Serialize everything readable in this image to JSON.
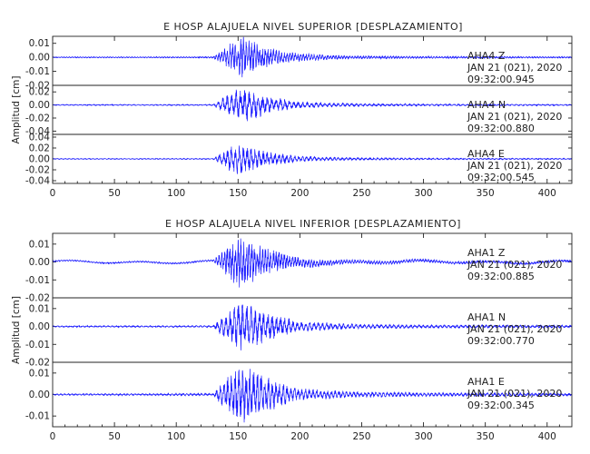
{
  "figure_title_top": "E HOSP ALAJUELA NIVEL SUPERIOR [DESPLAZAMIENTO]",
  "figure_title_bottom": "E HOSP ALAJUELA NIVEL INFERIOR [DESPLAZAMIENTO]",
  "trace_color": "#1a1aff",
  "chart_data": [
    {
      "type": "line",
      "title": "E HOSP ALAJUELA NIVEL SUPERIOR [DESPLAZAMIENTO]",
      "ylabel": "Amplitud [cm]",
      "xlim": [
        0,
        420
      ],
      "x_ticks": [
        "0",
        "50",
        "100",
        "150",
        "200",
        "250",
        "300",
        "350",
        "400"
      ],
      "panels": [
        {
          "station": "AHA4",
          "component": "Z",
          "date": "JAN 21 (021), 2020",
          "time": "09:32:00.945",
          "ylim": [
            -0.02,
            0.015
          ],
          "y_ticks": [
            "0.01",
            "0.00",
            "-0.01",
            "-0.02"
          ],
          "envelope": [
            [
              0,
              0.0004
            ],
            [
              130,
              0.0005
            ],
            [
              135,
              0.004
            ],
            [
              145,
              0.011
            ],
            [
              152,
              0.016
            ],
            [
              160,
              0.012
            ],
            [
              175,
              0.007
            ],
            [
              200,
              0.003
            ],
            [
              240,
              0.0012
            ],
            [
              300,
              0.0008
            ],
            [
              420,
              0.0005
            ]
          ],
          "period": 2.2,
          "drift": 0
        },
        {
          "station": "AHA4",
          "component": "N",
          "date": "JAN 21 (021), 2020",
          "time": "09:32:00.880",
          "ylim": [
            -0.045,
            0.03
          ],
          "y_ticks": [
            "0.02",
            "0.00",
            "-0.02",
            "-0.04"
          ],
          "envelope": [
            [
              0,
              0.0008
            ],
            [
              130,
              0.001
            ],
            [
              135,
              0.008
            ],
            [
              145,
              0.022
            ],
            [
              155,
              0.028
            ],
            [
              165,
              0.02
            ],
            [
              180,
              0.012
            ],
            [
              200,
              0.005
            ],
            [
              240,
              0.0025
            ],
            [
              300,
              0.0015
            ],
            [
              420,
              0.001
            ]
          ],
          "period": 3.6,
          "drift": 0
        },
        {
          "station": "AHA4",
          "component": "E",
          "date": "JAN 21 (021), 2020",
          "time": "09:32:00.545",
          "ylim": [
            -0.045,
            0.045
          ],
          "y_ticks": [
            "0.04",
            "0.02",
            "0.00",
            "-0.02",
            "-0.04"
          ],
          "envelope": [
            [
              0,
              0.0008
            ],
            [
              130,
              0.001
            ],
            [
              135,
              0.009
            ],
            [
              145,
              0.025
            ],
            [
              152,
              0.03
            ],
            [
              165,
              0.02
            ],
            [
              180,
              0.012
            ],
            [
              200,
              0.005
            ],
            [
              240,
              0.0025
            ],
            [
              300,
              0.0015
            ],
            [
              420,
              0.001
            ]
          ],
          "period": 3.2,
          "drift": 0
        }
      ]
    },
    {
      "type": "line",
      "title": "E HOSP ALAJUELA NIVEL INFERIOR [DESPLAZAMIENTO]",
      "ylabel": "Amplitud [cm]",
      "xlim": [
        0,
        420
      ],
      "x_ticks": [
        "0",
        "50",
        "100",
        "150",
        "200",
        "250",
        "300",
        "350",
        "400"
      ],
      "panels": [
        {
          "station": "AHA1",
          "component": "Z",
          "date": "JAN 21 (021), 2020",
          "time": "09:32:00.885",
          "ylim": [
            -0.02,
            0.016
          ],
          "y_ticks": [
            "0.01",
            "0.00",
            "-0.01",
            "-0.02"
          ],
          "envelope": [
            [
              0,
              0.0004
            ],
            [
              130,
              0.0005
            ],
            [
              135,
              0.004
            ],
            [
              145,
              0.011
            ],
            [
              152,
              0.016
            ],
            [
              160,
              0.012
            ],
            [
              175,
              0.007
            ],
            [
              200,
              0.003
            ],
            [
              240,
              0.0012
            ],
            [
              300,
              0.0009
            ],
            [
              420,
              0.0006
            ]
          ],
          "period": 2.2,
          "drift": 0.0009
        },
        {
          "station": "AHA1",
          "component": "N",
          "date": "JAN 21 (021), 2020",
          "time": "09:32:00.770",
          "ylim": [
            -0.02,
            0.016
          ],
          "y_ticks": [
            "0.01",
            "0.00",
            "-0.01",
            "-0.02"
          ],
          "envelope": [
            [
              0,
              0.0004
            ],
            [
              130,
              0.0005
            ],
            [
              135,
              0.004
            ],
            [
              145,
              0.01
            ],
            [
              152,
              0.014
            ],
            [
              165,
              0.011
            ],
            [
              180,
              0.007
            ],
            [
              200,
              0.003
            ],
            [
              240,
              0.0015
            ],
            [
              300,
              0.001
            ],
            [
              420,
              0.0007
            ]
          ],
          "period": 3.4,
          "drift": 0
        },
        {
          "station": "AHA1",
          "component": "E",
          "date": "JAN 21 (021), 2020",
          "time": "09:32:00.345",
          "ylim": [
            -0.015,
            0.015
          ],
          "y_ticks": [
            "0.01",
            "0.00",
            "-0.01"
          ],
          "envelope": [
            [
              0,
              0.0004
            ],
            [
              130,
              0.0005
            ],
            [
              135,
              0.004
            ],
            [
              145,
              0.011
            ],
            [
              152,
              0.014
            ],
            [
              165,
              0.011
            ],
            [
              180,
              0.007
            ],
            [
              200,
              0.003
            ],
            [
              240,
              0.0015
            ],
            [
              300,
              0.001
            ],
            [
              420,
              0.0007
            ]
          ],
          "period": 3.0,
          "drift": 0
        }
      ]
    }
  ]
}
